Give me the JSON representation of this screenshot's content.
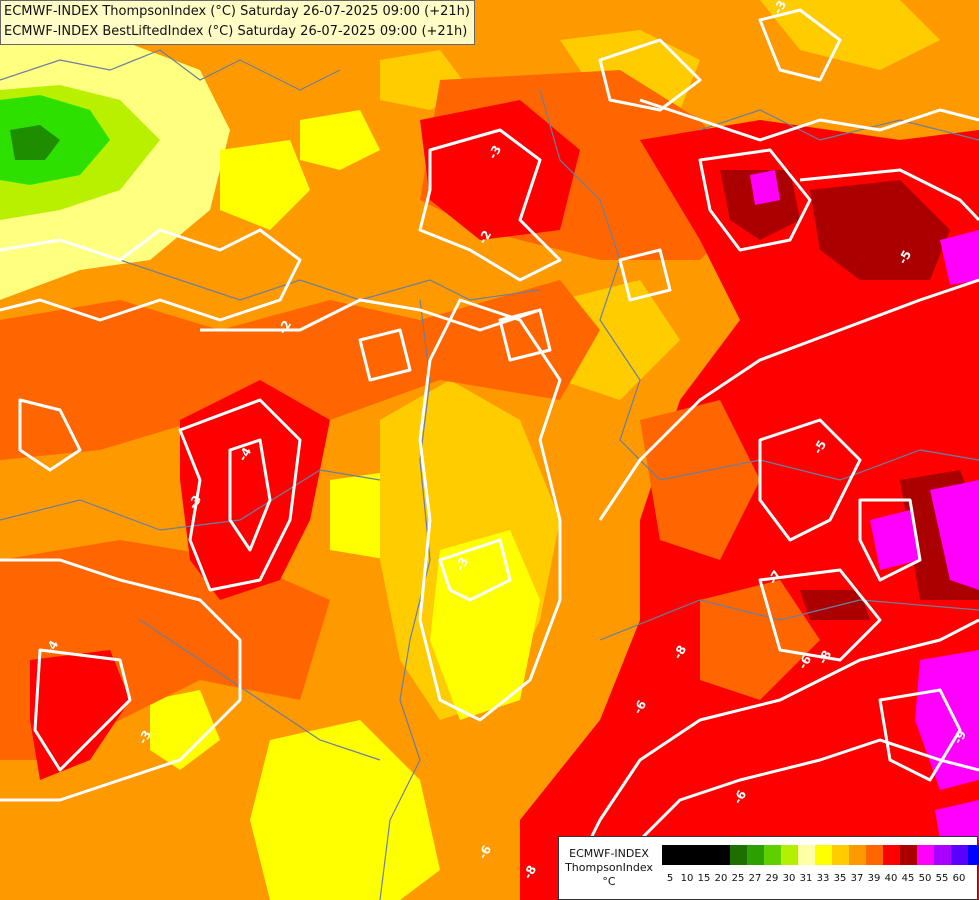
{
  "title": {
    "line1": "ECMWF-INDEX ThompsonIndex (°C) Saturday 26-07-2025 09:00 (+21h)",
    "line2": "ECMWF-INDEX BestLiftedIndex (°C) Saturday 26-07-2025 09:00 (+21h)"
  },
  "contour_labels": [
    "-3",
    "-3",
    "-2",
    "-2",
    "-5",
    "-5",
    "-4",
    "-3",
    "-4",
    "-3",
    "-3",
    "-6",
    "-7",
    "-8",
    "-8",
    "-6",
    "-9",
    "-6",
    "-6",
    "-8"
  ],
  "legend": {
    "title_lines": [
      "ECMWF-INDEX",
      "ThompsonIndex",
      "°C"
    ],
    "ticks": [
      "5",
      "10",
      "15",
      "20",
      "25",
      "27",
      "29",
      "30",
      "31",
      "33",
      "35",
      "37",
      "39",
      "40",
      "45",
      "50",
      "55",
      "60"
    ],
    "colors": [
      "#000000",
      "#000000",
      "#000000",
      "#000000",
      "#1e6e00",
      "#2ba000",
      "#5ed000",
      "#b0f000",
      "#ffffa8",
      "#ffff00",
      "#ffcc00",
      "#ff9900",
      "#ff6600",
      "#ff0000",
      "#aa0000",
      "#ff00ff",
      "#aa00ff",
      "#5a00ff",
      "#0000ff"
    ]
  },
  "colors": {
    "pale_yellow": "#ffff80",
    "yellow": "#ffff00",
    "gold": "#ffcc00",
    "orange": "#ff9900",
    "dark_orange": "#ff6600",
    "red": "#ff0000",
    "dark_red": "#aa0000",
    "magenta": "#ff00ff",
    "green": "#7ee000",
    "dark_green": "#1e8e00",
    "contour": "#ffffff",
    "border": "#6a7fa0"
  }
}
